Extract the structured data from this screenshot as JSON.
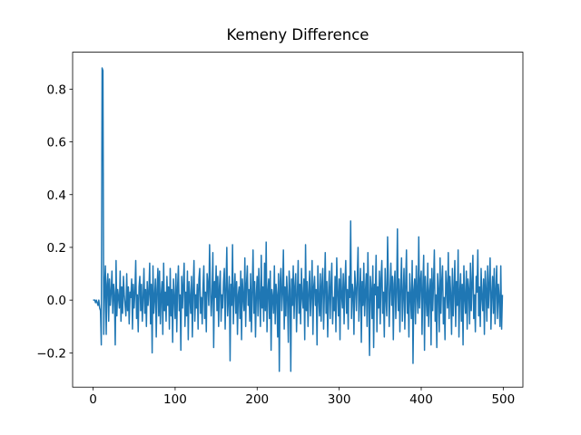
{
  "chart_data": {
    "type": "line",
    "title": "Kemeny Difference",
    "color": "#1f77b4",
    "xlim": [
      -24.95,
      523.95
    ],
    "ylim": [
      -0.33,
      0.94
    ],
    "xticks": [
      0,
      100,
      200,
      300,
      400,
      500
    ],
    "yticks": [
      {
        "value": -0.2,
        "label": "−0.2"
      },
      {
        "value": 0,
        "label": "0.0"
      },
      0.2,
      0.4,
      0.6,
      0.8
    ],
    "x": [
      0,
      1,
      2,
      3,
      4,
      5,
      6,
      7,
      8,
      9,
      10,
      11,
      12,
      13,
      14,
      15,
      16,
      17,
      18,
      19,
      20,
      21,
      22,
      23,
      24,
      25,
      26,
      27,
      28,
      29,
      30,
      31,
      32,
      33,
      34,
      35,
      36,
      37,
      38,
      39,
      40,
      41,
      42,
      43,
      44,
      45,
      46,
      47,
      48,
      49,
      50,
      51,
      52,
      53,
      54,
      55,
      56,
      57,
      58,
      59,
      60,
      61,
      62,
      63,
      64,
      65,
      66,
      67,
      68,
      69,
      70,
      71,
      72,
      73,
      74,
      75,
      76,
      77,
      78,
      79,
      80,
      81,
      82,
      83,
      84,
      85,
      86,
      87,
      88,
      89,
      90,
      91,
      92,
      93,
      94,
      95,
      96,
      97,
      98,
      99,
      100,
      101,
      102,
      103,
      104,
      105,
      106,
      107,
      108,
      109,
      110,
      111,
      112,
      113,
      114,
      115,
      116,
      117,
      118,
      119,
      120,
      121,
      122,
      123,
      124,
      125,
      126,
      127,
      128,
      129,
      130,
      131,
      132,
      133,
      134,
      135,
      136,
      137,
      138,
      139,
      140,
      141,
      142,
      143,
      144,
      145,
      146,
      147,
      148,
      149,
      150,
      151,
      152,
      153,
      154,
      155,
      156,
      157,
      158,
      159,
      160,
      161,
      162,
      163,
      164,
      165,
      166,
      167,
      168,
      169,
      170,
      171,
      172,
      173,
      174,
      175,
      176,
      177,
      178,
      179,
      180,
      181,
      182,
      183,
      184,
      185,
      186,
      187,
      188,
      189,
      190,
      191,
      192,
      193,
      194,
      195,
      196,
      197,
      198,
      199,
      200,
      201,
      202,
      203,
      204,
      205,
      206,
      207,
      208,
      209,
      210,
      211,
      212,
      213,
      214,
      215,
      216,
      217,
      218,
      219,
      220,
      221,
      222,
      223,
      224,
      225,
      226,
      227,
      228,
      229,
      230,
      231,
      232,
      233,
      234,
      235,
      236,
      237,
      238,
      239,
      240,
      241,
      242,
      243,
      244,
      245,
      246,
      247,
      248,
      249,
      250,
      251,
      252,
      253,
      254,
      255,
      256,
      257,
      258,
      259,
      260,
      261,
      262,
      263,
      264,
      265,
      266,
      267,
      268,
      269,
      270,
      271,
      272,
      273,
      274,
      275,
      276,
      277,
      278,
      279,
      280,
      281,
      282,
      283,
      284,
      285,
      286,
      287,
      288,
      289,
      290,
      291,
      292,
      293,
      294,
      295,
      296,
      297,
      298,
      299,
      300,
      301,
      302,
      303,
      304,
      305,
      306,
      307,
      308,
      309,
      310,
      311,
      312,
      313,
      314,
      315,
      316,
      317,
      318,
      319,
      320,
      321,
      322,
      323,
      324,
      325,
      326,
      327,
      328,
      329,
      330,
      331,
      332,
      333,
      334,
      335,
      336,
      337,
      338,
      339,
      340,
      341,
      342,
      343,
      344,
      345,
      346,
      347,
      348,
      349,
      350,
      351,
      352,
      353,
      354,
      355,
      356,
      357,
      358,
      359,
      360,
      361,
      362,
      363,
      364,
      365,
      366,
      367,
      368,
      369,
      370,
      371,
      372,
      373,
      374,
      375,
      376,
      377,
      378,
      379,
      380,
      381,
      382,
      383,
      384,
      385,
      386,
      387,
      388,
      389,
      390,
      391,
      392,
      393,
      394,
      395,
      396,
      397,
      398,
      399,
      400,
      401,
      402,
      403,
      404,
      405,
      406,
      407,
      408,
      409,
      410,
      411,
      412,
      413,
      414,
      415,
      416,
      417,
      418,
      419,
      420,
      421,
      422,
      423,
      424,
      425,
      426,
      427,
      428,
      429,
      430,
      431,
      432,
      433,
      434,
      435,
      436,
      437,
      438,
      439,
      440,
      441,
      442,
      443,
      444,
      445,
      446,
      447,
      448,
      449,
      450,
      451,
      452,
      453,
      454,
      455,
      456,
      457,
      458,
      459,
      460,
      461,
      462,
      463,
      464,
      465,
      466,
      467,
      468,
      469,
      470,
      471,
      472,
      473,
      474,
      475,
      476,
      477,
      478,
      479,
      480,
      481,
      482,
      483,
      484,
      485,
      486,
      487,
      488,
      489,
      490,
      491,
      492,
      493,
      494,
      495,
      496,
      497,
      498,
      499
    ],
    "values": [
      0,
      0,
      0,
      -0.01,
      0,
      -0.01,
      -0.02,
      0,
      -0.03,
      -0.04,
      -0.17,
      0.88,
      0.87,
      -0.13,
      0.05,
      0.13,
      -0.13,
      0.06,
      0.1,
      -0.08,
      0.08,
      -0.02,
      0.03,
      0.11,
      -0.05,
      0.06,
      0.02,
      -0.17,
      0.15,
      -0.06,
      0.04,
      0.01,
      -0.03,
      0.11,
      -0.08,
      0.05,
      -0.05,
      0.09,
      0.02,
      -0.02,
      -0.06,
      0.1,
      -0.04,
      0.05,
      -0.09,
      0.03,
      0.01,
      0.08,
      -0.11,
      0.06,
      -0.03,
      0.03,
      0.15,
      -0.07,
      0.02,
      -0.12,
      0.05,
      0.09,
      -0.04,
      0.06,
      -0.08,
      0.01,
      0.12,
      -0.05,
      0.04,
      -0.1,
      0.07,
      -0.02,
      0.03,
      0.14,
      -0.09,
      0.06,
      -0.2,
      0.13,
      -0.05,
      0.01,
      0.08,
      -0.14,
      0.04,
      0.12,
      -0.06,
      0.11,
      -0.09,
      0.02,
      0.07,
      -0.13,
      0.14,
      -0.04,
      0.03,
      -0.08,
      0.09,
      -0.02,
      0.05,
      -0.11,
      0.12,
      -0.06,
      0.04,
      -0.16,
      0.08,
      0.01,
      -0.07,
      0.1,
      -0.12,
      0.05,
      0.13,
      -0.04,
      0.02,
      -0.19,
      0.09,
      -0.03,
      0.06,
      0.14,
      -0.1,
      0.03,
      -0.06,
      0.11,
      -0.15,
      0.07,
      0.01,
      -0.05,
      0.09,
      -0.14,
      0.04,
      0.15,
      -0.08,
      0.02,
      -0.03,
      0.06,
      -0.11,
      0.08,
      0.12,
      -0.05,
      0.01,
      -0.09,
      0.05,
      0.13,
      -0.07,
      0.03,
      -0.12,
      0.1,
      0.06,
      -0.02,
      0.21,
      0.04,
      -0.06,
      0.02,
      0.18,
      -0.18,
      0.07,
      0.01,
      0.13,
      -0.04,
      0.09,
      -0.1,
      0.05,
      0.11,
      -0.08,
      0.02,
      -0.03,
      0.07,
      0.12,
      -0.11,
      0.04,
      0.2,
      -0.06,
      0.01,
      0.09,
      -0.23,
      0.06,
      -0.02,
      0.21,
      -0.09,
      0.03,
      0.1,
      -0.05,
      0.07,
      -0.13,
      0.02,
      0.05,
      -0.07,
      0.11,
      -0.15,
      0.08,
      0.01,
      -0.04,
      0.16,
      -0.1,
      0.06,
      0.13,
      -0.02,
      0.04,
      -0.08,
      0.1,
      -0.12,
      0.03,
      0.19,
      -0.05,
      0.07,
      -0.14,
      0.02,
      0.09,
      -0.06,
      0.12,
      0.01,
      -0.1,
      0.17,
      -0.03,
      0.05,
      -0.08,
      0.14,
      -0.04,
      0.22,
      -0.12,
      0.03,
      0.08,
      -0.07,
      0.11,
      -0.19,
      0.04,
      0.01,
      -0.05,
      0.13,
      -0.09,
      0.06,
      0.02,
      -0.14,
      0.1,
      -0.27,
      0.07,
      0.12,
      -0.04,
      0.03,
      0.19,
      -0.11,
      0.05,
      -0.06,
      0.09,
      0.01,
      -0.16,
      0.11,
      0.04,
      -0.27,
      0.08,
      -0.02,
      0.13,
      -0.07,
      0.05,
      0.1,
      -0.12,
      0.02,
      0.15,
      -0.05,
      0.06,
      -0.09,
      0.12,
      0.01,
      -0.03,
      0.08,
      -0.15,
      0.21,
      -0.04,
      0.07,
      -0.1,
      0.03,
      0.11,
      -0.06,
      0.02,
      0.15,
      -0.13,
      0.05,
      0.09,
      -0.02,
      0.04,
      -0.17,
      0.13,
      0.01,
      -0.06,
      0.1,
      -0.08,
      0.06,
      0.12,
      -0.11,
      0.03,
      0.18,
      -0.05,
      0.07,
      -0.14,
      0.02,
      0.11,
      -0.07,
      0.05,
      0.14,
      -0.09,
      0.01,
      -0.04,
      0.09,
      -0.12,
      0.16,
      0.03,
      -0.06,
      0.08,
      -0.15,
      0.12,
      0.02,
      -0.03,
      0.1,
      -0.09,
      0.06,
      0.15,
      -0.05,
      0.04,
      -0.11,
      0.09,
      0.01,
      0.3,
      -0.07,
      0.06,
      0.03,
      -0.13,
      0.11,
      0.05,
      -0.04,
      0.08,
      0.2,
      -0.08,
      0.02,
      0.12,
      -0.16,
      0.07,
      -0.02,
      0.14,
      -0.06,
      0.03,
      0.1,
      -0.1,
      0.18,
      0.01,
      -0.21,
      0.09,
      0.04,
      -0.07,
      0.13,
      -0.18,
      0.06,
      0.02,
      0.17,
      -0.12,
      0.05,
      -0.03,
      0.11,
      -0.09,
      0.08,
      0.15,
      -0.05,
      0.03,
      -0.14,
      0.12,
      0.01,
      -0.06,
      0.24,
      0.07,
      -0.1,
      0.04,
      0.14,
      -0.02,
      0.09,
      -0.15,
      0.06,
      0.11,
      -0.07,
      0.03,
      0.27,
      -0.04,
      0.08,
      -0.12,
      0.05,
      0.16,
      -0.08,
      0.02,
      0.12,
      -0.11,
      0.06,
      0.19,
      -0.05,
      0.03,
      -0.14,
      0.1,
      0.01,
      -0.07,
      0.15,
      -0.24,
      0.04,
      0.08,
      -0.09,
      0.13,
      0.02,
      -0.05,
      0.24,
      -0.03,
      0.07,
      0.11,
      -0.13,
      0.05,
      0.17,
      -0.19,
      0.09,
      0.01,
      -0.06,
      0.14,
      -0.1,
      0.03,
      0.08,
      -0.17,
      0.12,
      -0.04,
      0.06,
      0.19,
      -0.08,
      0.02,
      -0.18,
      0.1,
      0.04,
      -0.12,
      0.16,
      -0.05,
      0.07,
      0.13,
      -0.09,
      0.01,
      -0.15,
      0.11,
      0.05,
      -0.03,
      0.18,
      -0.07,
      0.09,
      0.02,
      -0.13,
      0.12,
      -0.06,
      0.04,
      0.15,
      -0.1,
      0.07,
      -0.02,
      0.19,
      -0.14,
      0.03,
      0.1,
      -0.08,
      0.06,
      -0.17,
      0.13,
      0.01,
      -0.05,
      0.11,
      -0.11,
      0.08,
      0.04,
      -0.09,
      0.14,
      -0.04,
      0.06,
      0.17,
      -0.07,
      0.02,
      -0.12,
      0.09,
      0.03,
      0.19,
      -0.06,
      0.05,
      -0.1,
      0.12,
      0.01,
      -0.04,
      0.08,
      -0.13,
      0.11,
      0.04,
      -0.08,
      0.13,
      -0.03,
      0.06,
      0.16,
      -0.11,
      0.02,
      0.09,
      -0.05,
      0.12,
      -0.09,
      0.04,
      0.13,
      -0.07,
      0.06,
      0.01,
      -0.1,
      0.13,
      -0.11,
      0.02
    ]
  }
}
